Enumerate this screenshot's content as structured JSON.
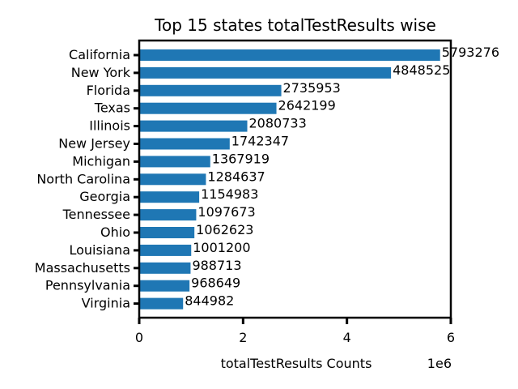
{
  "chart_data": {
    "type": "bar",
    "orientation": "horizontal",
    "title": "Top 15 states totalTestResults wise",
    "xlabel": "totalTestResults Counts",
    "ylabel": "",
    "x_scale_label": "1e6",
    "xlim": [
      0,
      6000000
    ],
    "x_ticks": [
      {
        "value": 0,
        "label": "0"
      },
      {
        "value": 2000000,
        "label": "2"
      },
      {
        "value": 4000000,
        "label": "4"
      },
      {
        "value": 6000000,
        "label": "6"
      }
    ],
    "categories": [
      "California",
      "New York",
      "Florida",
      "Texas",
      "Illinois",
      "New Jersey",
      "Michigan",
      "North Carolina",
      "Georgia",
      "Tennessee",
      "Ohio",
      "Louisiana",
      "Massachusetts",
      "Pennsylvania",
      "Virginia"
    ],
    "values": [
      5793276,
      4848525,
      2735953,
      2642199,
      2080733,
      1742347,
      1367919,
      1284637,
      1154983,
      1097673,
      1062623,
      1001200,
      988713,
      968649,
      844982
    ],
    "value_labels": [
      "5793276",
      "4848525",
      "2735953",
      "2642199",
      "2080733",
      "1742347",
      "1367919",
      "1284637",
      "1154983",
      "1097673",
      "1062623",
      "1001200",
      "988713",
      "968649",
      "844982"
    ],
    "bar_color": "#1f77b4",
    "grid": false,
    "legend": "none"
  }
}
